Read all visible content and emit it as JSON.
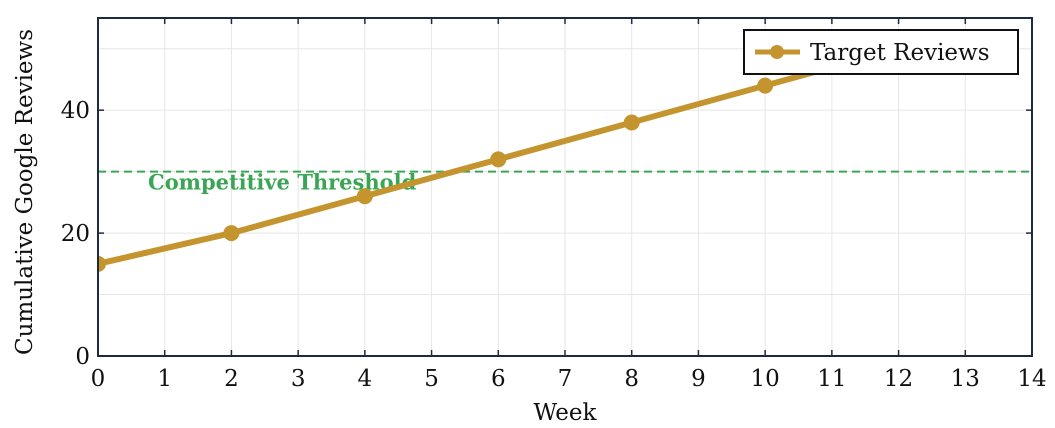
{
  "chart_data": {
    "type": "line",
    "xlabel": "Week",
    "ylabel": "Cumulative Google Reviews",
    "xlim": [
      0,
      14
    ],
    "ylim": [
      0,
      55
    ],
    "xticks": [
      0,
      1,
      2,
      3,
      4,
      5,
      6,
      7,
      8,
      9,
      10,
      11,
      12,
      13,
      14
    ],
    "yticks": [
      0,
      20,
      40
    ],
    "grid": true,
    "legend_position": "top-right",
    "series": [
      {
        "name": "Target Reviews",
        "color": "#c4952f",
        "x": [
          0,
          2,
          4,
          6,
          8,
          10,
          12
        ],
        "y": [
          15,
          20,
          26,
          32,
          38,
          44,
          50
        ]
      }
    ],
    "annotations": [
      {
        "label": "Competitive Threshold",
        "y": 30,
        "style": "dashed",
        "color": "#3aa655"
      }
    ],
    "colors": {
      "axis": "#1c2b40",
      "grid": "#e6e6e6"
    }
  }
}
